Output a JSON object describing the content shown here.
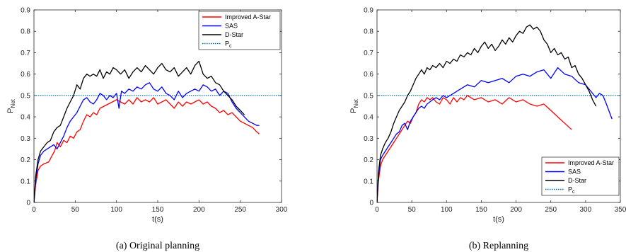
{
  "chart_data": [
    {
      "type": "line",
      "caption": "(a)  Original planning",
      "xlabel": "t(s)",
      "ylabel": "P",
      "ylabel_sub": "Net",
      "xlim": [
        0,
        300
      ],
      "ylim": [
        0,
        0.9
      ],
      "xticks": [
        "0",
        "50",
        "100",
        "150",
        "200",
        "250",
        "300"
      ],
      "yticks": [
        "0",
        "0.1",
        "0.2",
        "0.3",
        "0.4",
        "0.5",
        "0.6",
        "0.7",
        "0.8",
        "0.9"
      ],
      "legend_position": "top-right",
      "legend": [
        {
          "name": "Improved A-Star",
          "color": "#ff0000"
        },
        {
          "name": "SAS",
          "color": "#0000ff"
        },
        {
          "name": "D-Star",
          "color": "#000000"
        },
        {
          "name": "P",
          "sub": "c",
          "color": "#0072bd",
          "dotted": true
        }
      ],
      "threshold": 0.5,
      "series": [
        {
          "name": "Improved A-Star",
          "color": "#ff0000",
          "x": [
            0,
            2,
            5,
            8,
            12,
            18,
            22,
            25,
            28,
            32,
            36,
            40,
            44,
            48,
            52,
            56,
            60,
            64,
            68,
            72,
            76,
            80,
            85,
            90,
            95,
            100,
            105,
            110,
            115,
            120,
            125,
            130,
            135,
            140,
            145,
            150,
            155,
            160,
            165,
            170,
            175,
            180,
            185,
            190,
            195,
            200,
            205,
            210,
            215,
            220,
            225,
            230,
            235,
            240,
            245,
            250,
            255,
            260,
            265,
            270,
            273
          ],
          "y": [
            0,
            0.08,
            0.15,
            0.17,
            0.18,
            0.19,
            0.22,
            0.24,
            0.28,
            0.26,
            0.29,
            0.28,
            0.31,
            0.3,
            0.33,
            0.34,
            0.38,
            0.41,
            0.4,
            0.42,
            0.41,
            0.44,
            0.45,
            0.46,
            0.47,
            0.48,
            0.47,
            0.46,
            0.48,
            0.46,
            0.49,
            0.47,
            0.48,
            0.47,
            0.49,
            0.46,
            0.47,
            0.48,
            0.46,
            0.44,
            0.47,
            0.45,
            0.47,
            0.46,
            0.47,
            0.48,
            0.46,
            0.47,
            0.45,
            0.44,
            0.42,
            0.43,
            0.41,
            0.42,
            0.4,
            0.38,
            0.37,
            0.36,
            0.35,
            0.33,
            0.32
          ]
        },
        {
          "name": "SAS",
          "color": "#0000ff",
          "x": [
            0,
            2,
            5,
            8,
            12,
            16,
            20,
            24,
            28,
            32,
            36,
            40,
            44,
            48,
            52,
            56,
            60,
            64,
            68,
            72,
            76,
            80,
            84,
            88,
            92,
            96,
            100,
            103,
            106,
            110,
            115,
            120,
            125,
            130,
            135,
            140,
            145,
            150,
            155,
            160,
            165,
            170,
            175,
            180,
            185,
            190,
            195,
            200,
            205,
            210,
            215,
            220,
            225,
            230,
            235,
            240,
            245,
            250,
            255,
            260,
            265,
            270,
            273
          ],
          "y": [
            0,
            0.1,
            0.18,
            0.22,
            0.24,
            0.25,
            0.26,
            0.27,
            0.25,
            0.28,
            0.31,
            0.35,
            0.38,
            0.4,
            0.42,
            0.45,
            0.48,
            0.49,
            0.47,
            0.46,
            0.48,
            0.51,
            0.5,
            0.48,
            0.5,
            0.49,
            0.51,
            0.44,
            0.52,
            0.51,
            0.53,
            0.52,
            0.54,
            0.53,
            0.55,
            0.56,
            0.53,
            0.52,
            0.54,
            0.51,
            0.5,
            0.48,
            0.52,
            0.49,
            0.51,
            0.52,
            0.53,
            0.52,
            0.55,
            0.54,
            0.52,
            0.53,
            0.5,
            0.52,
            0.51,
            0.47,
            0.44,
            0.42,
            0.4,
            0.38,
            0.37,
            0.36,
            0.36
          ]
        },
        {
          "name": "D-Star",
          "color": "#000000",
          "x": [
            0,
            2,
            5,
            8,
            12,
            16,
            20,
            24,
            28,
            32,
            36,
            40,
            44,
            48,
            52,
            56,
            60,
            64,
            68,
            72,
            76,
            80,
            84,
            88,
            92,
            96,
            100,
            105,
            110,
            115,
            120,
            125,
            130,
            135,
            140,
            145,
            150,
            155,
            160,
            165,
            170,
            175,
            180,
            185,
            190,
            195,
            200,
            205,
            210,
            215,
            220,
            225,
            230,
            235,
            240,
            245,
            250,
            255
          ],
          "y": [
            0,
            0.12,
            0.2,
            0.24,
            0.26,
            0.28,
            0.29,
            0.33,
            0.35,
            0.36,
            0.4,
            0.44,
            0.47,
            0.5,
            0.55,
            0.53,
            0.58,
            0.6,
            0.59,
            0.6,
            0.59,
            0.62,
            0.58,
            0.61,
            0.6,
            0.63,
            0.62,
            0.6,
            0.62,
            0.58,
            0.61,
            0.63,
            0.61,
            0.64,
            0.62,
            0.6,
            0.63,
            0.65,
            0.62,
            0.61,
            0.63,
            0.59,
            0.61,
            0.63,
            0.6,
            0.64,
            0.66,
            0.6,
            0.58,
            0.59,
            0.56,
            0.55,
            0.52,
            0.5,
            0.48,
            0.45,
            0.43,
            0.41
          ]
        }
      ]
    },
    {
      "type": "line",
      "caption": "(b)  Replanning",
      "xlabel": "t(s)",
      "ylabel": "P",
      "ylabel_sub": "Net",
      "xlim": [
        0,
        350
      ],
      "ylim": [
        0,
        0.9
      ],
      "xticks": [
        "0",
        "50",
        "100",
        "150",
        "200",
        "250",
        "300",
        "350"
      ],
      "yticks": [
        "0",
        "0.1",
        "0.2",
        "0.3",
        "0.4",
        "0.5",
        "0.6",
        "0.7",
        "0.8",
        "0.9"
      ],
      "legend_position": "bottom-right",
      "legend": [
        {
          "name": "Improved A-Star",
          "color": "#ff0000"
        },
        {
          "name": "SAS",
          "color": "#0000ff"
        },
        {
          "name": "D-Star",
          "color": "#000000"
        },
        {
          "name": "P",
          "sub": "c",
          "color": "#0072bd",
          "dotted": true
        }
      ],
      "threshold": 0.5,
      "series": [
        {
          "name": "Improved A-Star",
          "color": "#ff0000",
          "x": [
            0,
            2,
            5,
            8,
            12,
            16,
            20,
            24,
            28,
            32,
            36,
            40,
            44,
            48,
            52,
            56,
            60,
            64,
            68,
            72,
            76,
            80,
            85,
            90,
            95,
            100,
            105,
            110,
            115,
            120,
            125,
            130,
            140,
            150,
            160,
            170,
            180,
            190,
            195,
            200,
            210,
            220,
            230,
            240,
            250,
            260,
            270,
            280
          ],
          "y": [
            0,
            0.1,
            0.17,
            0.2,
            0.22,
            0.24,
            0.26,
            0.28,
            0.3,
            0.32,
            0.34,
            0.36,
            0.38,
            0.37,
            0.4,
            0.42,
            0.46,
            0.48,
            0.47,
            0.49,
            0.48,
            0.49,
            0.47,
            0.46,
            0.49,
            0.48,
            0.46,
            0.49,
            0.47,
            0.49,
            0.48,
            0.5,
            0.48,
            0.49,
            0.47,
            0.48,
            0.46,
            0.49,
            0.48,
            0.47,
            0.48,
            0.46,
            0.45,
            0.46,
            0.43,
            0.4,
            0.37,
            0.34
          ]
        },
        {
          "name": "SAS",
          "color": "#0000ff",
          "x": [
            0,
            2,
            5,
            8,
            12,
            16,
            20,
            24,
            28,
            32,
            36,
            40,
            44,
            48,
            52,
            56,
            60,
            64,
            68,
            72,
            76,
            80,
            85,
            90,
            95,
            100,
            110,
            120,
            130,
            140,
            150,
            160,
            170,
            180,
            190,
            200,
            210,
            220,
            230,
            240,
            250,
            260,
            270,
            280,
            290,
            300,
            310,
            315,
            320,
            325,
            330,
            338
          ],
          "y": [
            0,
            0.12,
            0.2,
            0.22,
            0.24,
            0.26,
            0.28,
            0.3,
            0.32,
            0.33,
            0.36,
            0.37,
            0.34,
            0.38,
            0.4,
            0.42,
            0.44,
            0.45,
            0.44,
            0.46,
            0.47,
            0.48,
            0.49,
            0.48,
            0.5,
            0.49,
            0.51,
            0.53,
            0.55,
            0.54,
            0.57,
            0.56,
            0.57,
            0.58,
            0.56,
            0.59,
            0.6,
            0.59,
            0.61,
            0.62,
            0.58,
            0.63,
            0.6,
            0.59,
            0.56,
            0.55,
            0.51,
            0.49,
            0.51,
            0.5,
            0.46,
            0.39
          ]
        },
        {
          "name": "D-Star",
          "color": "#000000",
          "x": [
            0,
            2,
            5,
            8,
            12,
            16,
            20,
            24,
            28,
            32,
            36,
            40,
            44,
            48,
            52,
            56,
            60,
            64,
            68,
            72,
            76,
            80,
            85,
            90,
            95,
            100,
            105,
            110,
            115,
            120,
            125,
            130,
            135,
            140,
            145,
            150,
            155,
            160,
            165,
            170,
            175,
            180,
            185,
            190,
            195,
            200,
            205,
            210,
            215,
            220,
            225,
            230,
            235,
            240,
            245,
            250,
            255,
            260,
            265,
            270,
            275,
            280,
            285,
            290,
            295,
            300,
            305,
            310,
            315
          ],
          "y": [
            0,
            0.14,
            0.22,
            0.25,
            0.28,
            0.3,
            0.33,
            0.37,
            0.4,
            0.43,
            0.45,
            0.47,
            0.5,
            0.52,
            0.55,
            0.58,
            0.6,
            0.62,
            0.6,
            0.63,
            0.62,
            0.64,
            0.63,
            0.65,
            0.63,
            0.66,
            0.65,
            0.67,
            0.66,
            0.69,
            0.68,
            0.7,
            0.69,
            0.72,
            0.7,
            0.73,
            0.75,
            0.72,
            0.74,
            0.71,
            0.73,
            0.76,
            0.74,
            0.77,
            0.75,
            0.78,
            0.8,
            0.79,
            0.82,
            0.83,
            0.81,
            0.82,
            0.8,
            0.76,
            0.74,
            0.7,
            0.72,
            0.69,
            0.7,
            0.67,
            0.68,
            0.63,
            0.64,
            0.6,
            0.58,
            0.55,
            0.52,
            0.48,
            0.45
          ]
        }
      ]
    }
  ]
}
